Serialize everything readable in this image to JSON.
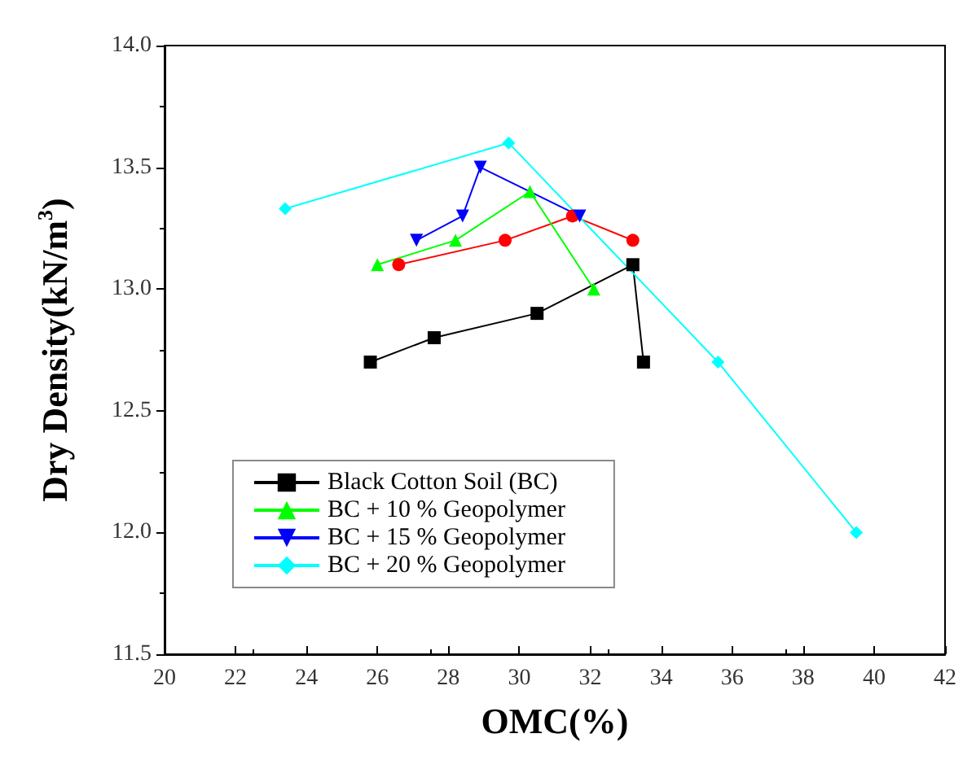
{
  "chart_data": {
    "type": "line",
    "xlabel": "OMC(%)",
    "ylabel": "Dry Density(kN/m$^{3}$)",
    "xlim": [
      20,
      42
    ],
    "xticks": [
      20,
      22,
      24,
      26,
      28,
      30,
      32,
      34,
      36,
      38,
      40,
      42
    ],
    "ylim": [
      11.5,
      14
    ],
    "yticks": [
      {
        "value": 11.5,
        "label": "11.5"
      },
      {
        "value": 12,
        "label": "12.0"
      },
      {
        "value": 12.5,
        "label": "12.5"
      },
      {
        "value": 13,
        "label": "13.0"
      },
      {
        "value": 13.5,
        "label": "13.5"
      },
      {
        "value": 14,
        "label": "14.0"
      }
    ],
    "grid": false,
    "legend": "bottom left",
    "line_style": "solid",
    "series": [
      {
        "name": "Black Cotton Soil (BC)",
        "color": "#000000",
        "marker": "square",
        "x": [
          25.8,
          27.6,
          30.5,
          33.2,
          33.5
        ],
        "values": [
          12.7,
          12.8,
          12.9,
          13.1,
          12.7
        ]
      },
      {
        "color": "#ff0000",
        "marker": "circle",
        "x": [
          26.6,
          29.6,
          31.5,
          33.2
        ],
        "values": [
          13.1,
          13.2,
          13.3,
          13.2
        ]
      },
      {
        "name": "BC + 10 % Geopolymer",
        "color": "#00ff00",
        "marker": "triangle",
        "x": [
          26.0,
          28.2,
          30.3,
          32.1
        ],
        "values": [
          13.1,
          13.2,
          13.4,
          13.0
        ]
      },
      {
        "name": "BC + 15 % Geopolymer",
        "color": "#0000ff",
        "marker": "triangle-down",
        "x": [
          27.1,
          28.4,
          28.9,
          31.7
        ],
        "values": [
          13.2,
          13.3,
          13.5,
          13.3
        ]
      },
      {
        "name": "BC + 20 % Geopolymer",
        "color": "#00ffff",
        "marker": "diamond",
        "x": [
          23.4,
          29.7,
          35.6,
          39.5
        ],
        "values": [
          13.33,
          13.6,
          12.7,
          12.0
        ]
      }
    ]
  }
}
